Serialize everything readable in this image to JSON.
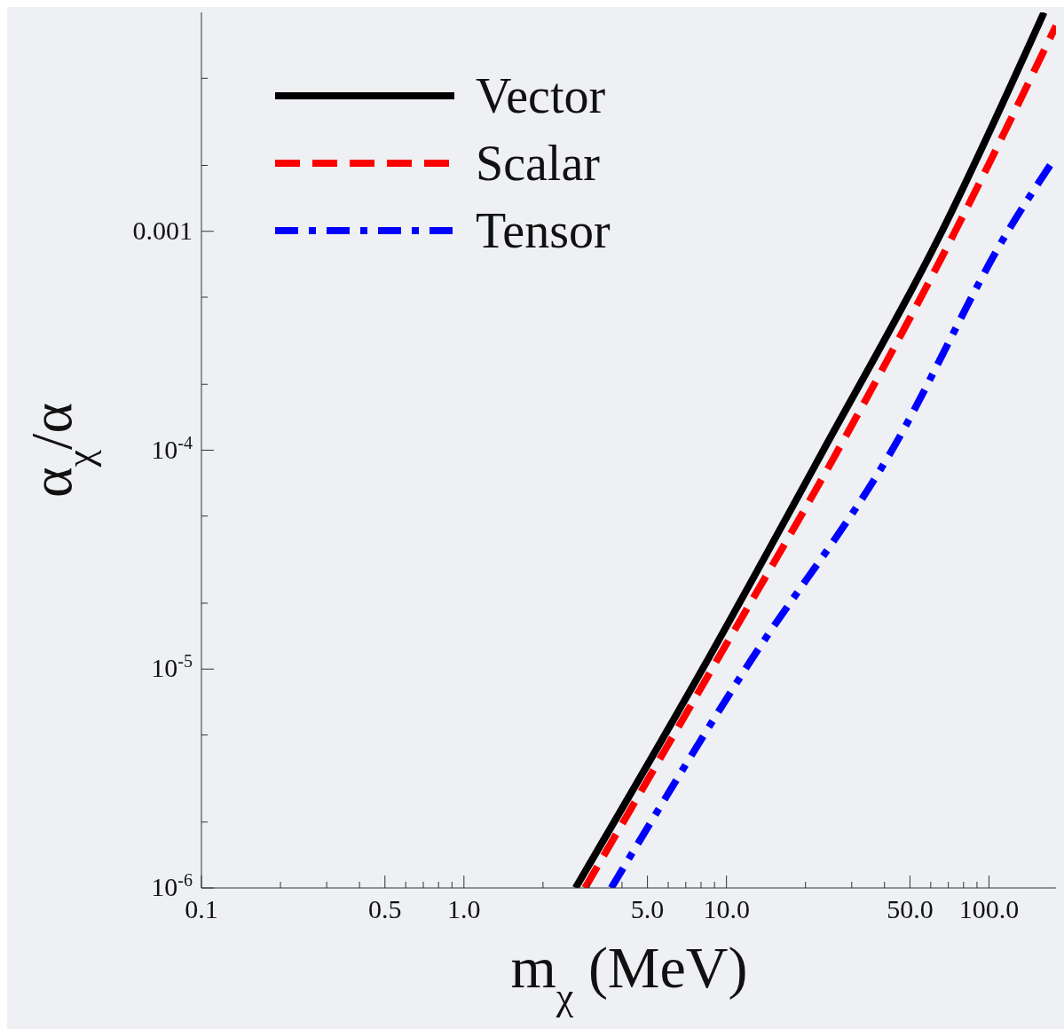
{
  "chart_data": {
    "type": "line",
    "xlabel": "m$_{χ}$ (MeV)",
    "ylabel": "α$_{χ}$/α",
    "log": "xy",
    "legend": "top left",
    "grid": false,
    "xlim": [
      0.1,
      180
    ],
    "ylim": [
      1e-06,
      0.01
    ],
    "xticks": [
      {
        "value": 0.1,
        "label": "0.1"
      },
      {
        "value": 0.2,
        "label": null
      },
      {
        "value": 0.3,
        "label": null
      },
      {
        "value": 0.4,
        "label": null
      },
      {
        "value": 0.5,
        "label": "0.5"
      },
      {
        "value": 0.6,
        "label": null
      },
      {
        "value": 0.7,
        "label": null
      },
      {
        "value": 0.8,
        "label": null
      },
      {
        "value": 0.9,
        "label": null
      },
      {
        "value": 1,
        "label": "1.0"
      },
      {
        "value": 2,
        "label": null
      },
      {
        "value": 3,
        "label": null
      },
      {
        "value": 4,
        "label": null
      },
      {
        "value": 5,
        "label": "5.0"
      },
      {
        "value": 6,
        "label": null
      },
      {
        "value": 7,
        "label": null
      },
      {
        "value": 8,
        "label": null
      },
      {
        "value": 9,
        "label": null
      },
      {
        "value": 10,
        "label": "10.0"
      },
      {
        "value": 20,
        "label": null
      },
      {
        "value": 30,
        "label": null
      },
      {
        "value": 40,
        "label": null
      },
      {
        "value": 50,
        "label": "50.0"
      },
      {
        "value": 60,
        "label": null
      },
      {
        "value": 70,
        "label": null
      },
      {
        "value": 80,
        "label": null
      },
      {
        "value": 90,
        "label": null
      },
      {
        "value": 100,
        "label": "100.0"
      }
    ],
    "yticks": [
      {
        "value": 1e-06,
        "label": "10$^{-6}$"
      },
      {
        "value": 2e-06,
        "label": null
      },
      {
        "value": 5e-06,
        "label": null
      },
      {
        "value": 1e-05,
        "label": "10$^{-5}$"
      },
      {
        "value": 2e-05,
        "label": null
      },
      {
        "value": 5e-05,
        "label": null
      },
      {
        "value": 0.0001,
        "label": "10$^{-4}$"
      },
      {
        "value": 0.0002,
        "label": null
      },
      {
        "value": 0.0005,
        "label": null
      },
      {
        "value": 0.001,
        "label": "0.001"
      },
      {
        "value": 0.002,
        "label": null
      },
      {
        "value": 0.005,
        "label": null
      }
    ],
    "series": [
      {
        "name": "Vector",
        "color": "#000000",
        "line_style": "solid",
        "x": [
          2.66,
          8.1,
          23.4,
          66.2,
          162
        ],
        "values": [
          1e-06,
          1e-05,
          0.0001,
          0.001,
          0.01
        ]
      },
      {
        "name": "Scalar",
        "color": "#ff0000",
        "line_style": "dashed",
        "x": [
          2.89,
          8.8,
          26.6,
          74.3,
          180
        ],
        "values": [
          1e-06,
          1e-05,
          0.0001,
          0.001,
          0.0087
        ]
      },
      {
        "name": "Tensor",
        "color": "#0000ff",
        "line_style": "dashdot",
        "x": [
          3.64,
          11.8,
          42.7,
          118,
          180
        ],
        "values": [
          1e-06,
          1e-05,
          0.0001,
          0.001,
          0.0022
        ]
      }
    ]
  }
}
